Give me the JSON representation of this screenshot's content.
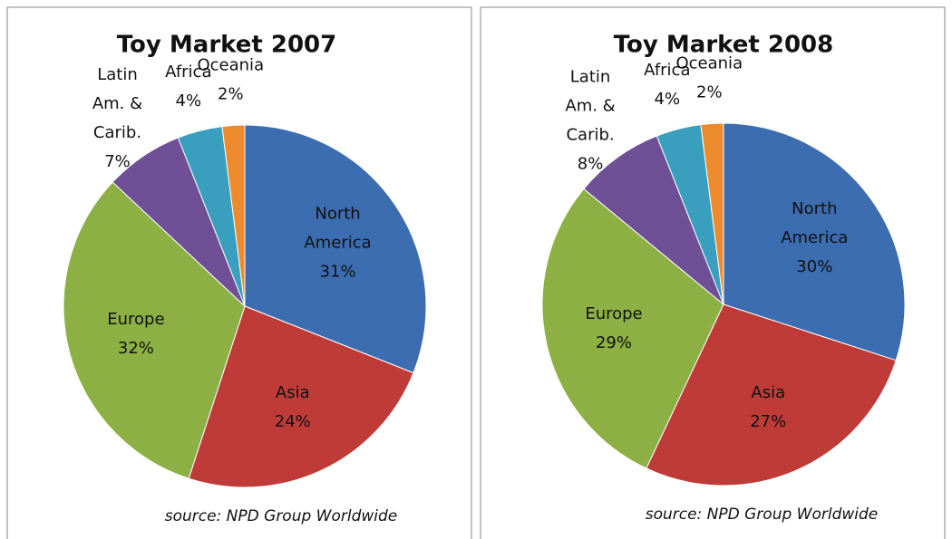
{
  "chart_data": [
    {
      "type": "pie",
      "title": "Toy Market 2007",
      "annotation": "source: NPD Group Worldwide",
      "categories": [
        "North America",
        "Asia",
        "Europe",
        "Latin Am. & Carib.",
        "Africa",
        "Oceania"
      ],
      "values": [
        31,
        24,
        32,
        7,
        4,
        2
      ],
      "value_labels": [
        "31%",
        "24%",
        "32%",
        "7%",
        "4%",
        "2%"
      ],
      "colors": [
        "#3c6db0",
        "#be3b38",
        "#8cb043",
        "#6f4f95",
        "#3a9fbf",
        "#ed8a2d"
      ]
    },
    {
      "type": "pie",
      "title": "Toy Market 2008",
      "annotation": "source: NPD Group Worldwide",
      "categories": [
        "North America",
        "Asia",
        "Europe",
        "Latin Am. & Carib.",
        "Africa",
        "Oceania"
      ],
      "values": [
        30,
        27,
        29,
        8,
        4,
        2
      ],
      "value_labels": [
        "30%",
        "27%",
        "29%",
        "8%",
        "4%",
        "2%"
      ],
      "colors": [
        "#3c6db0",
        "#be3b38",
        "#8cb043",
        "#6f4f95",
        "#3a9fbf",
        "#ed8a2d"
      ]
    }
  ]
}
